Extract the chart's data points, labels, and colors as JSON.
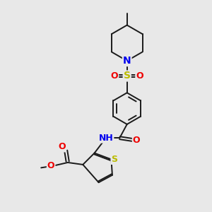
{
  "bg_color": "#e8e8e8",
  "bond_color": "#1a1a1a",
  "bond_lw": 1.4,
  "atom_colors": {
    "N": "#0000ee",
    "O": "#ee0000",
    "S": "#bbbb00",
    "H": "#708090"
  },
  "fs": 9,
  "figsize": [
    3.0,
    3.0
  ],
  "dpi": 100
}
